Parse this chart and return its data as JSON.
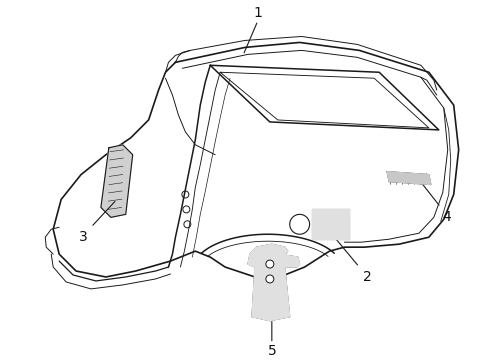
{
  "background_color": "#ffffff",
  "line_color": "#1a1a1a",
  "label_color": "#111111",
  "fig_width": 4.9,
  "fig_height": 3.6,
  "dpi": 100,
  "font_size_label": 10
}
